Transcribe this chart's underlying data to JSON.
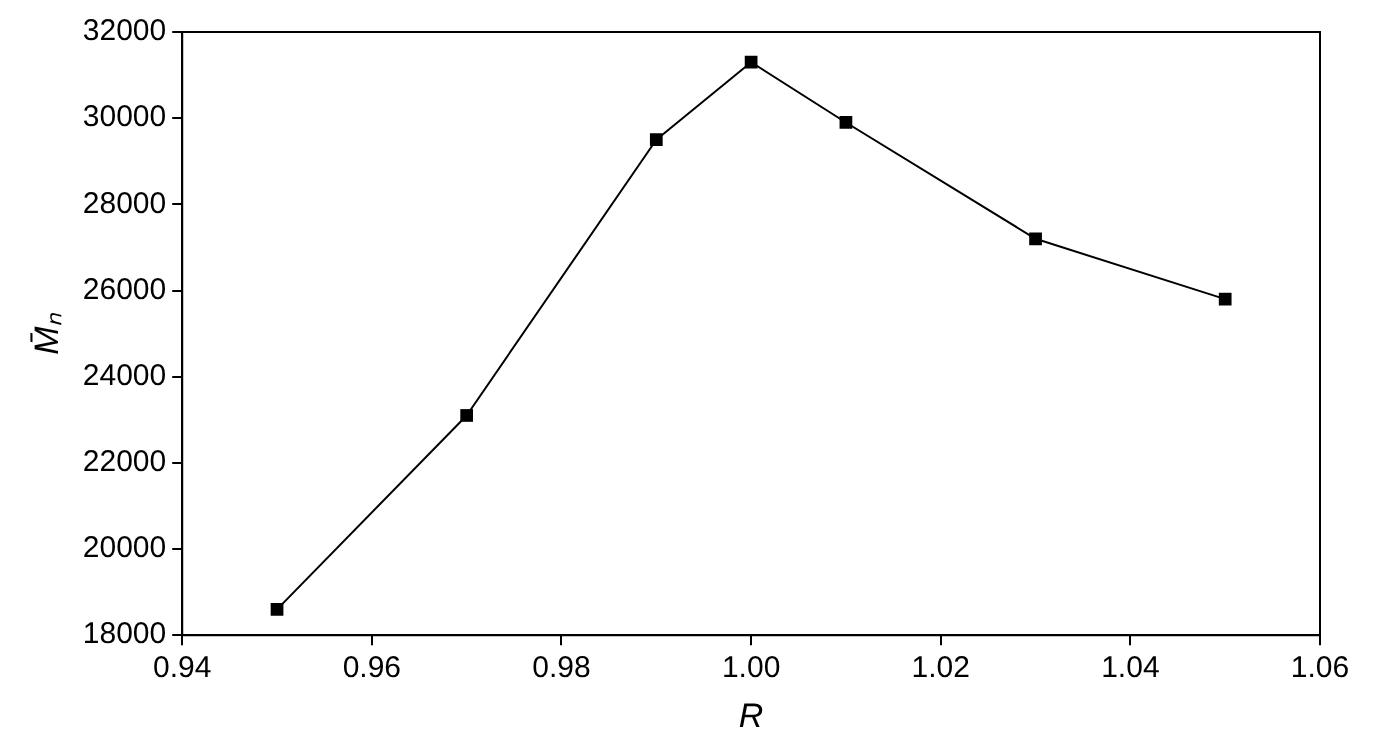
{
  "chart_data": {
    "type": "line",
    "xlabel": "R",
    "ylabel": "M̄ₙ",
    "x": [
      0.95,
      0.97,
      0.99,
      1.0,
      1.01,
      1.03,
      1.05
    ],
    "series": [
      {
        "color": "#000000",
        "values": [
          18600,
          23100,
          29500,
          31300,
          29900,
          27200,
          25800
        ]
      }
    ],
    "xlim": [
      0.94,
      1.06
    ],
    "xticks": [
      0.94,
      0.96,
      0.98,
      {
        "value": 1.0,
        "label": "1.00"
      },
      1.02,
      1.04,
      1.06
    ],
    "ylim": [
      18000,
      32000
    ],
    "yticks": [
      18000,
      20000,
      22000,
      24000,
      26000,
      28000,
      30000,
      32000
    ],
    "grid": false,
    "legend": false,
    "marker": "square",
    "line_style": "solid"
  }
}
